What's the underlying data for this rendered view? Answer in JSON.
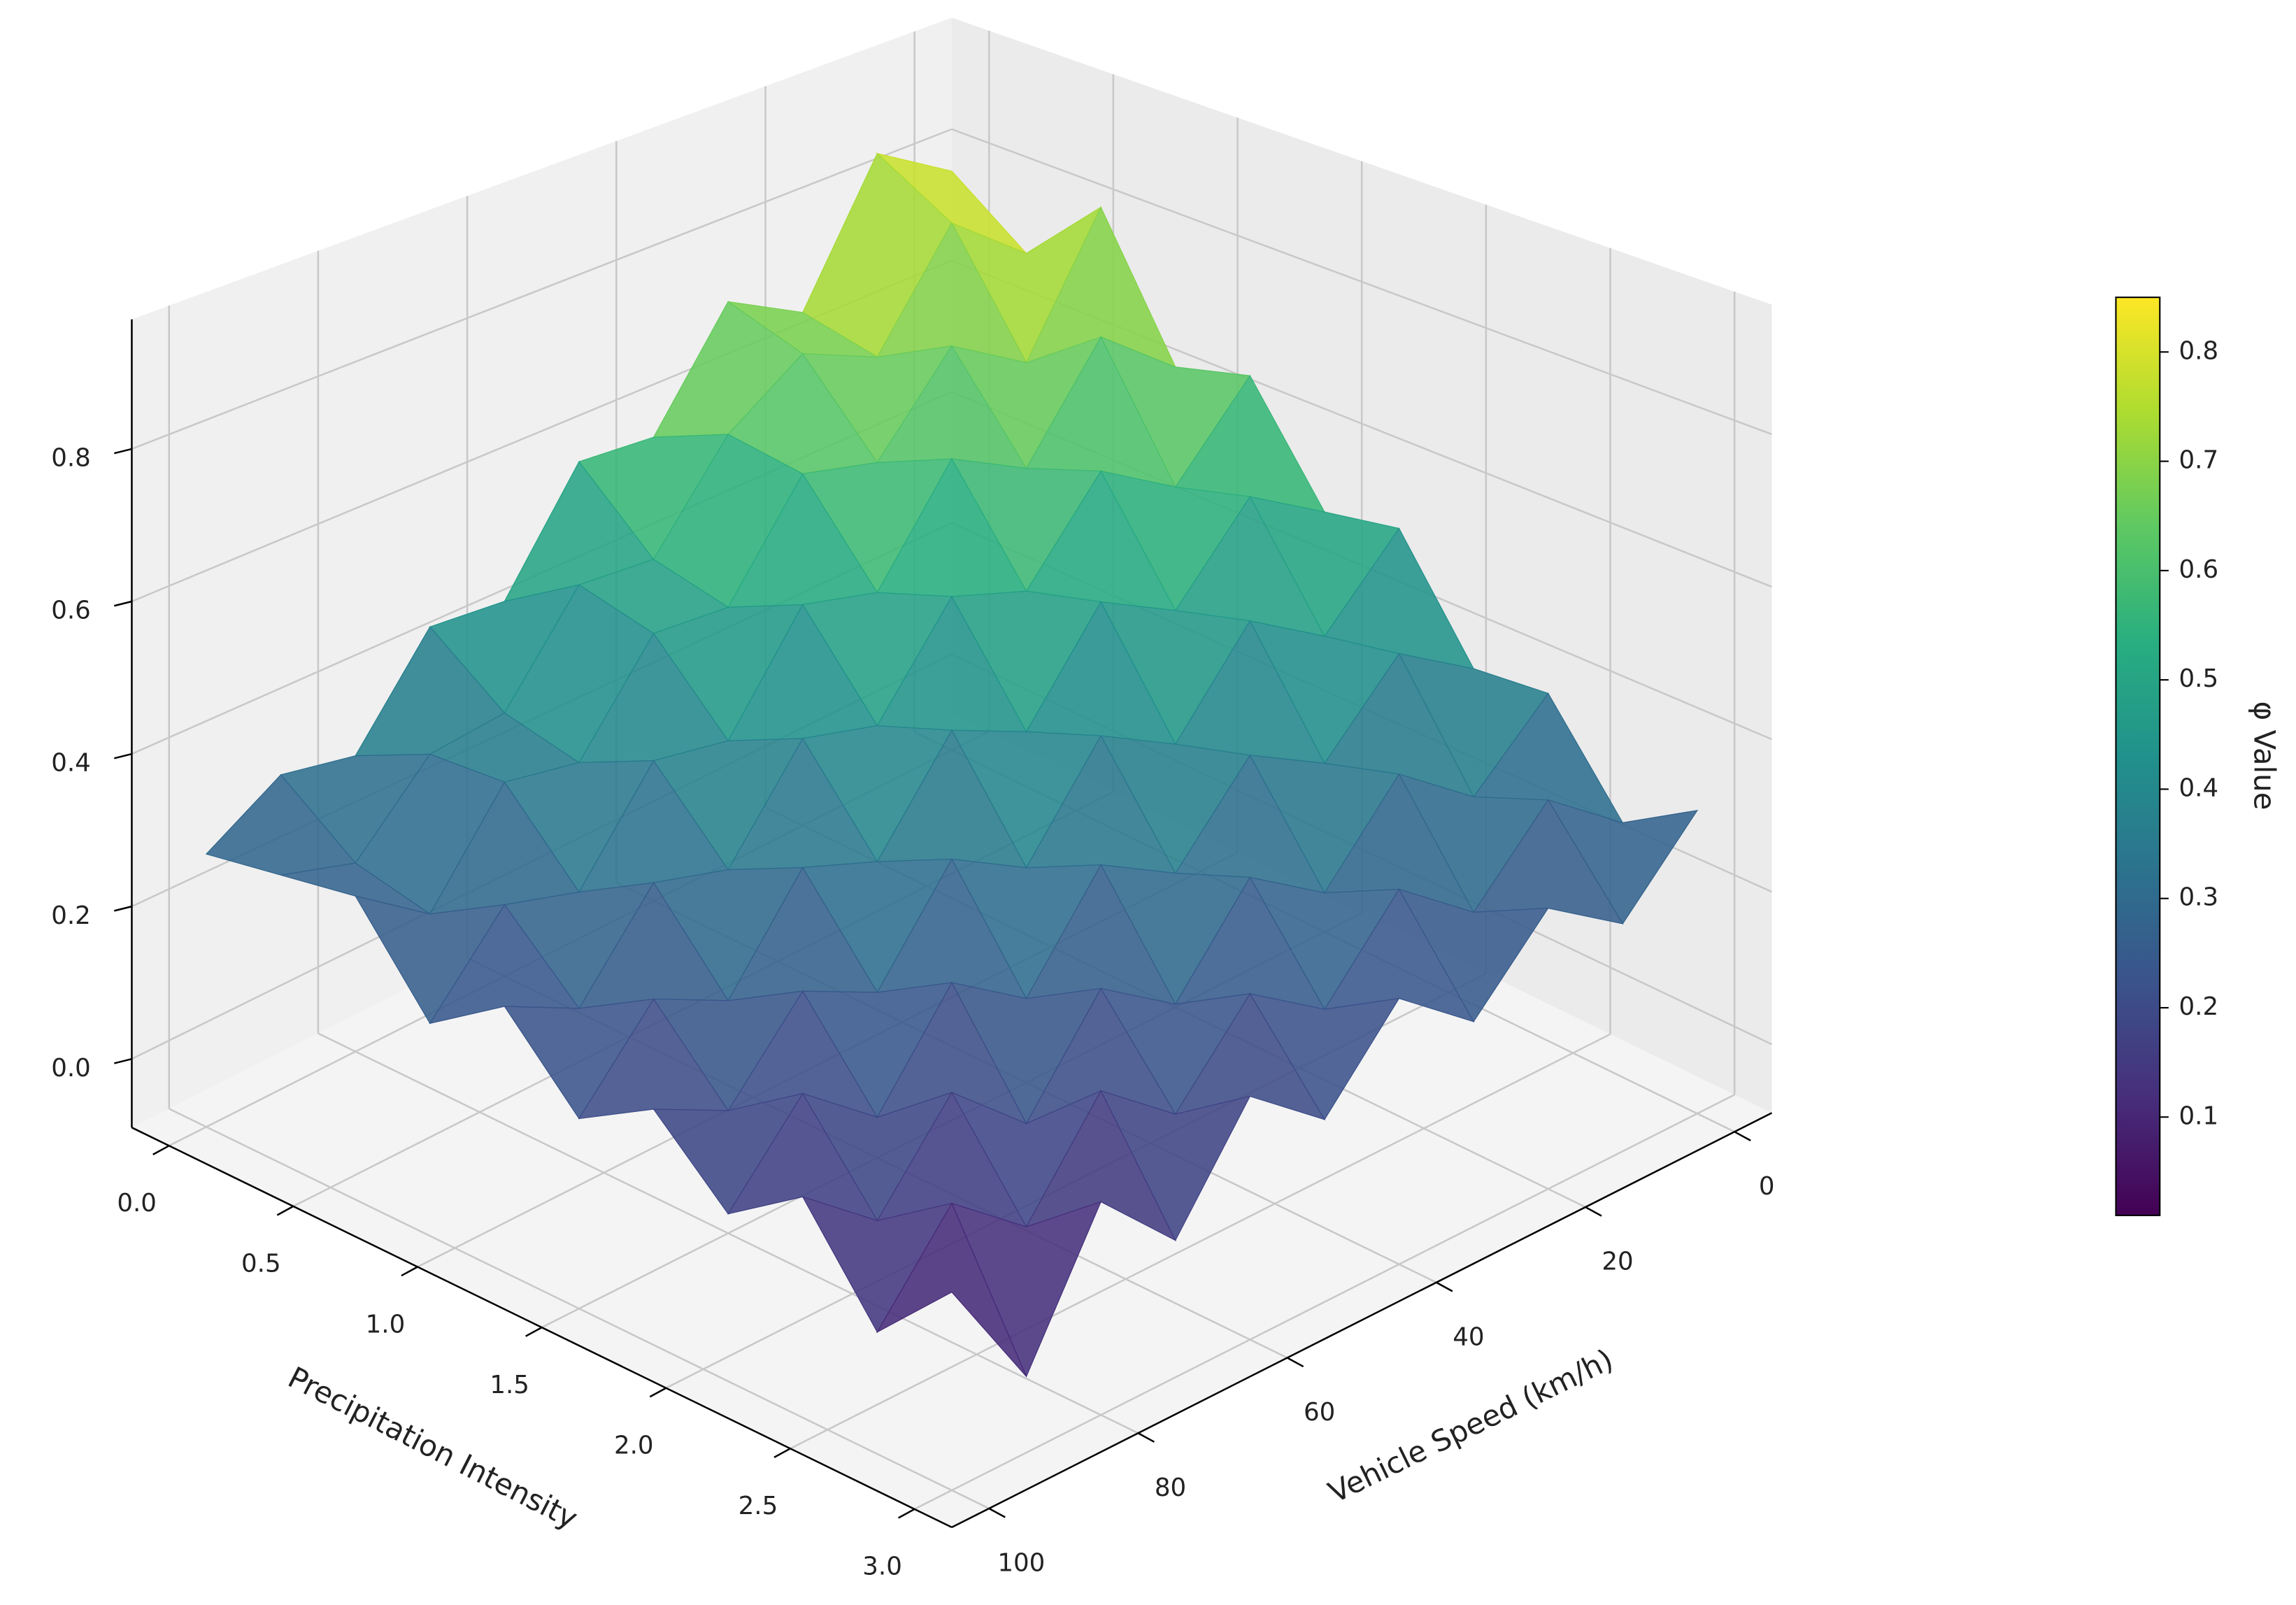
{
  "chart_data": {
    "type": "surface",
    "xlabel": "Vehicle Speed (km/h)",
    "ylabel": "Precipitation Intensity",
    "colorbar_label": "φ Value",
    "colormap": "viridis",
    "x": [
      0,
      10,
      20,
      30,
      40,
      50,
      60,
      70,
      80,
      90,
      100
    ],
    "y": [
      0,
      0.3,
      0.6,
      0.9,
      1.2,
      1.5,
      1.8,
      2.1,
      2.4,
      2.7,
      3.0
    ],
    "z": [
      [
        0.78,
        0.85,
        0.66,
        0.72,
        0.57,
        0.58,
        0.43,
        0.44,
        0.31,
        0.33,
        0.27
      ],
      [
        0.7,
        0.79,
        0.64,
        0.69,
        0.62,
        0.49,
        0.5,
        0.37,
        0.36,
        0.26,
        0.29
      ],
      [
        0.81,
        0.63,
        0.7,
        0.58,
        0.61,
        0.47,
        0.48,
        0.35,
        0.37,
        0.24,
        0.31
      ],
      [
        0.62,
        0.71,
        0.57,
        0.63,
        0.49,
        0.52,
        0.38,
        0.4,
        0.27,
        0.3,
        0.19
      ],
      [
        0.65,
        0.54,
        0.61,
        0.49,
        0.53,
        0.4,
        0.43,
        0.3,
        0.33,
        0.21,
        0.26
      ],
      [
        0.5,
        0.57,
        0.46,
        0.52,
        0.39,
        0.44,
        0.31,
        0.35,
        0.22,
        0.27,
        0.16
      ],
      [
        0.52,
        0.42,
        0.49,
        0.37,
        0.43,
        0.3,
        0.36,
        0.23,
        0.28,
        0.17,
        0.22
      ],
      [
        0.37,
        0.44,
        0.34,
        0.4,
        0.29,
        0.35,
        0.22,
        0.29,
        0.16,
        0.24,
        0.13
      ],
      [
        0.38,
        0.29,
        0.37,
        0.26,
        0.33,
        0.21,
        0.28,
        0.15,
        0.24,
        0.12,
        0.2
      ],
      [
        0.25,
        0.33,
        0.23,
        0.31,
        0.2,
        0.27,
        0.16,
        0.24,
        0.11,
        0.19,
        0.07
      ],
      [
        0.31,
        0.21,
        0.28,
        0.18,
        0.26,
        0.15,
        0.23,
        0.09,
        0.19,
        0.01,
        0.17
      ]
    ],
    "xlim": [
      -5,
      105
    ],
    "ylim": [
      -0.15,
      3.15
    ],
    "zlim": [
      -0.09,
      0.97
    ],
    "xticks": [
      0,
      20,
      40,
      60,
      80,
      100
    ],
    "yticks": [
      {
        "value": 0,
        "label": "0.0"
      },
      0.5,
      {
        "value": 1,
        "label": "1.0"
      },
      1.5,
      {
        "value": 2,
        "label": "2.0"
      },
      2.5,
      {
        "value": 3,
        "label": "3.0"
      }
    ],
    "zticks": [
      {
        "value": 0,
        "label": "0.0"
      },
      0.2,
      0.4,
      0.6,
      0.8
    ],
    "clim": [
      0.01,
      0.85
    ],
    "cticks": [
      0.1,
      0.2,
      0.3,
      0.4,
      0.5,
      0.6,
      0.7,
      0.8
    ],
    "grid": true
  }
}
